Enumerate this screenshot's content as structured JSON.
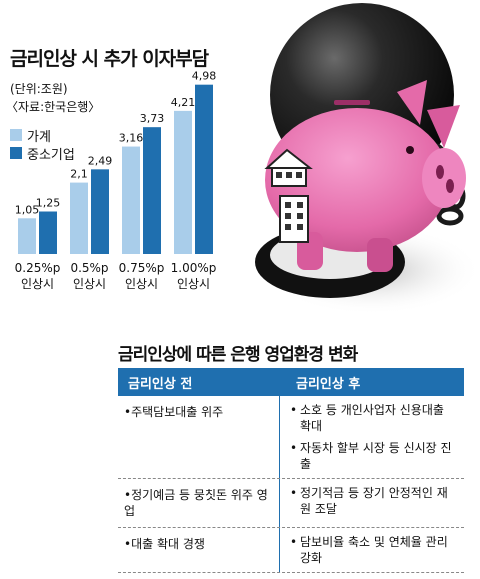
{
  "header": {
    "title": "금리인상 시 추가 이자부담",
    "unit": "(단위:조원)",
    "source": "〈자료:한국은행〉"
  },
  "legend": [
    {
      "label": "가계",
      "color": "#a9cdea"
    },
    {
      "label": "중소기업",
      "color": "#1f6faf"
    }
  ],
  "chart_data": {
    "type": "bar",
    "title": "금리인상 시 추가 이자부담",
    "categories": [
      "0.25%p 인상시",
      "0.5%p 인상시",
      "0.75%p 인상시",
      "1.00%p 인상시"
    ],
    "category_lines": [
      [
        "0.25%p",
        "인상시"
      ],
      [
        "0.5%p",
        "인상시"
      ],
      [
        "0.75%p",
        "인상시"
      ],
      [
        "1.00%p",
        "인상시"
      ]
    ],
    "series": [
      {
        "name": "가계",
        "values": [
          1.05,
          2.1,
          3.16,
          4.21
        ],
        "labels": [
          "1,05",
          "2,1",
          "3,16",
          "4,21"
        ],
        "color": "#a9cdea"
      },
      {
        "name": "중소기업",
        "values": [
          1.25,
          2.49,
          3.73,
          4.98
        ],
        "labels": [
          "1,25",
          "2,49",
          "3,73",
          "4,98"
        ],
        "color": "#1f6faf"
      }
    ],
    "ylim": [
      0,
      5
    ],
    "grid": false,
    "legend_position": "top-left"
  },
  "table": {
    "title": "금리인상에 따른 은행 영업환경 변화",
    "col_before": "금리인상 전",
    "col_after": "금리인상 후",
    "rows": [
      {
        "before": "•주택담보대출 위주",
        "after": [
          "소호 등 개인사업자 신용대출 확대",
          "자동차 할부 시장 등 신시장 진출"
        ]
      },
      {
        "before": "•정기예금 등 뭉칫돈 위주 영업",
        "after": [
          "정기적금 등 장기 안정적인 재원 조달"
        ]
      },
      {
        "before": "•대출 확대 경쟁",
        "after": [
          "담보비율 축소 및 연체율 관리 강화"
        ]
      }
    ]
  },
  "illustration": {
    "description_icon": "piggy-bank-ball-and-chain"
  }
}
